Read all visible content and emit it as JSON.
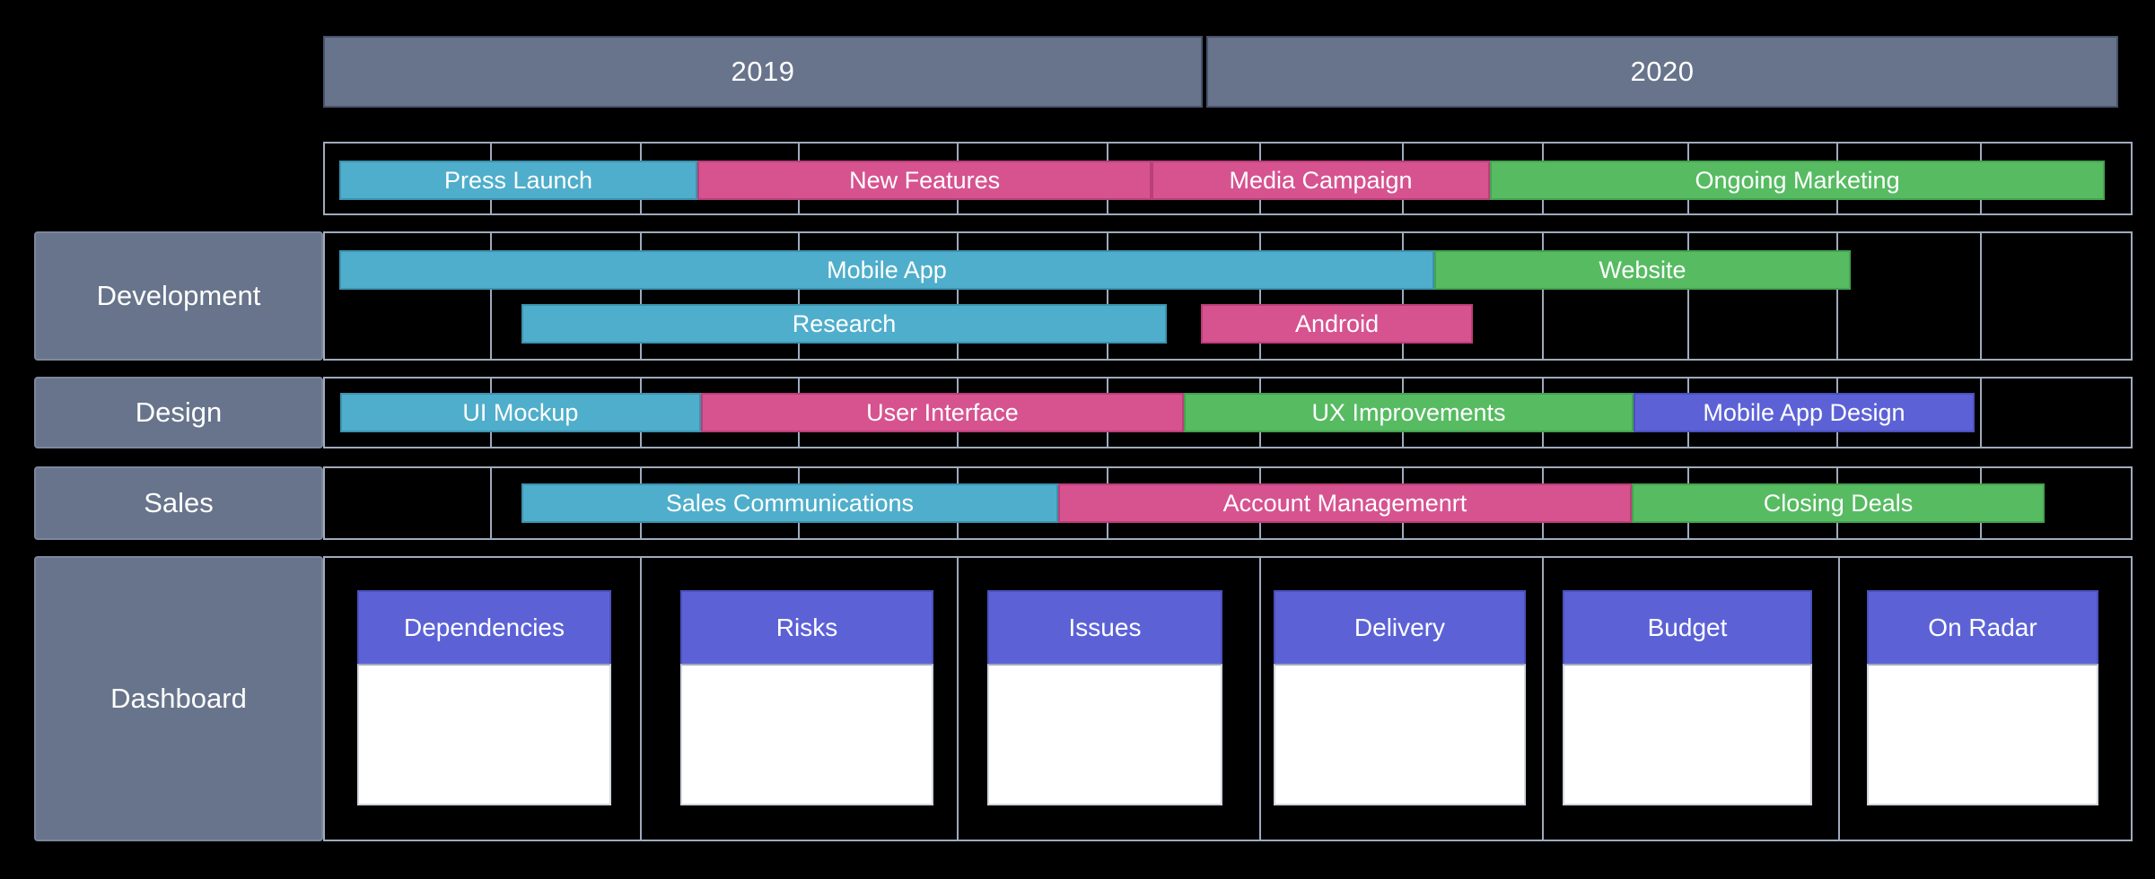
{
  "page": {
    "background": "#000000"
  },
  "colors": {
    "teal": {
      "fill": "#4FAECB",
      "border": "#3C93AE"
    },
    "pink": {
      "fill": "#D65390",
      "border": "#BA3F79"
    },
    "green": {
      "fill": "#57BB62",
      "border": "#44A350"
    },
    "purple": {
      "fill": "#5C62D6",
      "border": "#4B50BE"
    },
    "slate": {
      "fill": "#67748B",
      "border": "#7B879C"
    },
    "grid": "#9FABBD",
    "card_header": "#5C62D6",
    "card_body": "#FFFFFF"
  },
  "chart_data": {
    "type": "bar",
    "subtype": "gantt-roadmap",
    "title": "",
    "x_axis": {
      "labels": [
        "2019",
        "2020"
      ],
      "range_years": [
        2019,
        2020
      ],
      "grid": true,
      "minor_columns_per_year": 6,
      "legend_position": "none"
    },
    "sections": [
      {
        "label": null,
        "lanes": [
          [
            {
              "task": "Press Launch",
              "color": "teal",
              "start": 0.0089,
              "end": 0.2069
            },
            {
              "task": "New Features",
              "color": "pink",
              "start": 0.2069,
              "end": 0.4579
            },
            {
              "task": "Media Campaign",
              "color": "pink",
              "start": 0.4579,
              "end": 0.6448
            },
            {
              "task": "Ongoing Marketing",
              "color": "green",
              "start": 0.6448,
              "end": 0.9847
            }
          ]
        ]
      },
      {
        "label": "Development",
        "lanes": [
          [
            {
              "task": "Mobile App",
              "color": "teal",
              "start": 0.0089,
              "end": 0.6141
            },
            {
              "task": "Website",
              "color": "green",
              "start": 0.6141,
              "end": 0.8442
            }
          ],
          [
            {
              "task": "Research",
              "color": "teal",
              "start": 0.1096,
              "end": 0.4663
            },
            {
              "task": "Android",
              "color": "pink",
              "start": 0.4851,
              "end": 0.6355
            }
          ]
        ]
      },
      {
        "label": "Design",
        "lanes": [
          [
            {
              "task": "UI Mockup",
              "color": "teal",
              "start": 0.0094,
              "end": 0.2088
            },
            {
              "task": "User Interface",
              "color": "pink",
              "start": 0.2088,
              "end": 0.4757
            },
            {
              "task": "UX Improvements",
              "color": "green",
              "start": 0.4757,
              "end": 0.7242
            },
            {
              "task": "Mobile App Design",
              "color": "purple",
              "start": 0.7242,
              "end": 0.9127
            }
          ]
        ]
      },
      {
        "label": "Sales",
        "lanes": [
          [
            {
              "task": "Sales Communications",
              "color": "teal",
              "start": 0.1096,
              "end": 0.4062
            },
            {
              "task": "Account Managemenrt",
              "color": "pink",
              "start": 0.4062,
              "end": 0.7232
            },
            {
              "task": "Closing Deals",
              "color": "green",
              "start": 0.7232,
              "end": 0.9514
            }
          ]
        ]
      }
    ],
    "dashboard": {
      "label": "Dashboard",
      "cards": [
        {
          "title": "Dependencies"
        },
        {
          "title": "Risks"
        },
        {
          "title": "Issues"
        },
        {
          "title": "Delivery"
        },
        {
          "title": "Budget"
        },
        {
          "title": "On Radar"
        }
      ]
    }
  }
}
